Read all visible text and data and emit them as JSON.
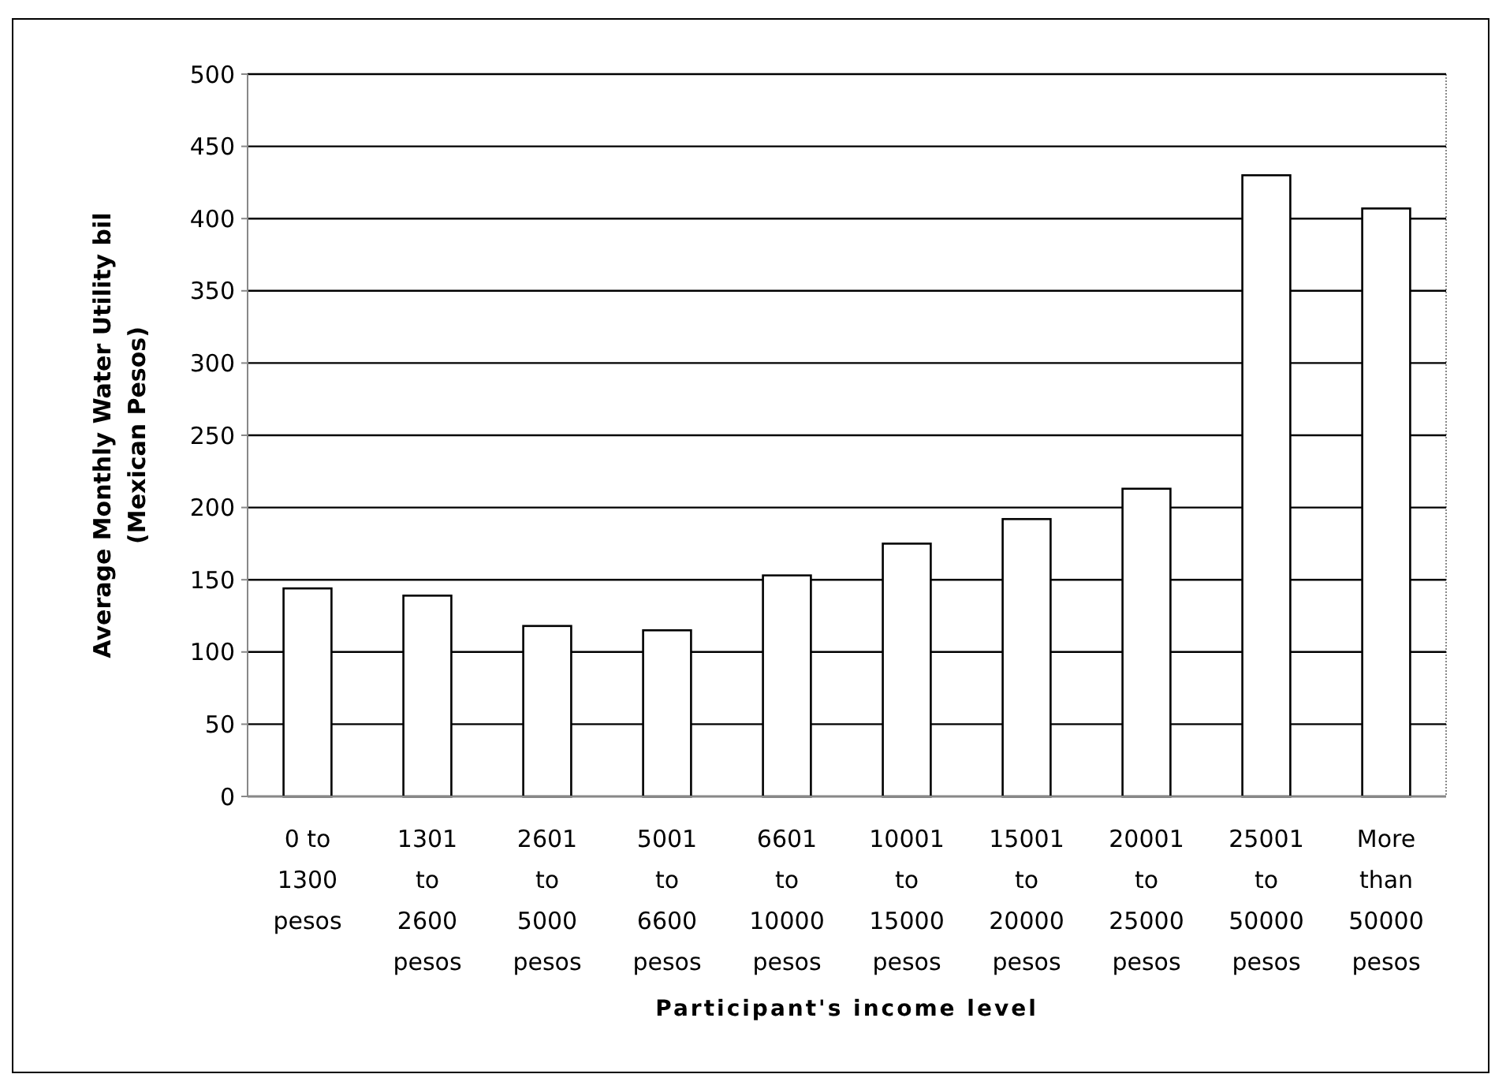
{
  "chart_data": {
    "type": "bar",
    "xlabel": "Participant's income level",
    "ylabel": "Average Monthly Water Utility bil (Mexican Pesos)",
    "categories": [
      "0 to 1300 pesos",
      "1301 to 2600 pesos",
      "2601 to 5000 pesos",
      "5001 to 6600 pesos",
      "6601 to 10000 pesos",
      "10001 to 15000 pesos",
      "15001 to 20000 pesos",
      "20001 to 25000 pesos",
      "25001 to 50000 pesos",
      "More than 50000 pesos"
    ],
    "values": [
      144,
      139,
      118,
      115,
      153,
      175,
      192,
      213,
      430,
      407
    ],
    "color": "#ffffff",
    "ylim": [
      0,
      500
    ],
    "yticks": [
      0,
      50,
      100,
      150,
      200,
      250,
      300,
      350,
      400,
      450,
      500
    ],
    "grid": "y"
  }
}
